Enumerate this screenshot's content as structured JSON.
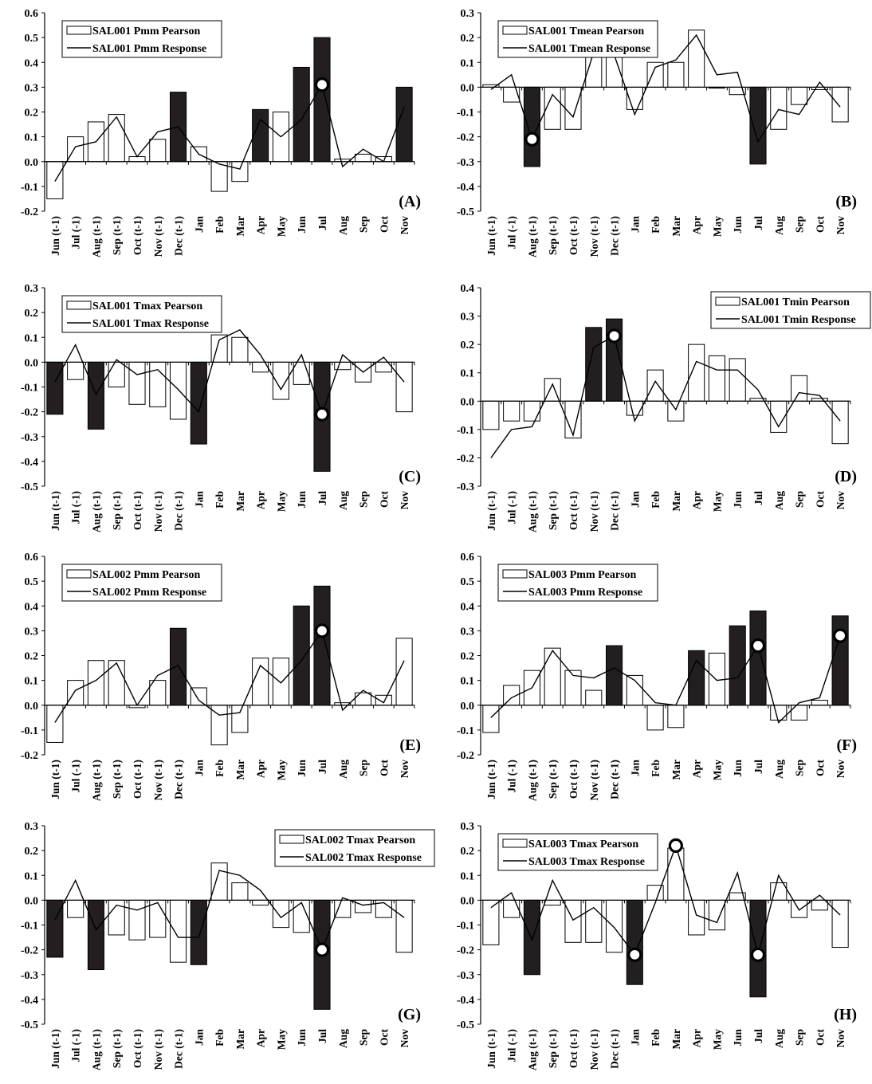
{
  "chart_data": [
    {
      "type": "bar",
      "panel_label": "(A)",
      "categories": [
        "Jun (t-1)",
        "Jul (-1)",
        "Aug (t-1)",
        "Sep (t-1)",
        "Oct (t-1)",
        "Nov (t-1)",
        "Dec (t-1)",
        "Jan",
        "Feb",
        "Mar",
        "Apr",
        "May",
        "Jun",
        "Jul",
        "Aug",
        "Sep",
        "Oct",
        "Nov"
      ],
      "ylim": [
        -0.2,
        0.6
      ],
      "yticks": [
        "-0.2",
        "-0.1",
        "0.0",
        "0.1",
        "0.2",
        "0.3",
        "0.4",
        "0.5",
        "0.6"
      ],
      "legend_position": "top-left",
      "series": [
        {
          "name": "SAL001 Pmm Pearson",
          "kind": "bar",
          "values": [
            -0.15,
            0.1,
            0.16,
            0.19,
            0.02,
            0.09,
            0.28,
            0.06,
            -0.12,
            -0.08,
            0.21,
            0.2,
            0.38,
            0.5,
            0.01,
            0.03,
            0.02,
            0.3
          ],
          "highlighted": [
            false,
            false,
            false,
            false,
            false,
            false,
            true,
            false,
            false,
            false,
            true,
            false,
            true,
            true,
            false,
            false,
            false,
            true
          ]
        },
        {
          "name": "SAL001 Pmm Response",
          "kind": "line",
          "values": [
            -0.08,
            0.06,
            0.08,
            0.18,
            0.02,
            0.12,
            0.14,
            0.03,
            -0.01,
            -0.03,
            0.17,
            0.1,
            0.17,
            0.31,
            -0.02,
            0.05,
            0.0,
            0.22
          ],
          "markers": [
            13
          ]
        }
      ]
    },
    {
      "type": "bar",
      "panel_label": "(B)",
      "categories": [
        "Jun (t-1)",
        "Jul (-1)",
        "Aug (t-1)",
        "Sep (t-1)",
        "Oct (t-1)",
        "Nov (t-1)",
        "Dec (t-1)",
        "Jan",
        "Feb",
        "Mar",
        "Apr",
        "May",
        "Jun",
        "Jul",
        "Aug",
        "Sep",
        "Oct",
        "Nov"
      ],
      "ylim": [
        -0.5,
        0.3
      ],
      "yticks": [
        "-0.5",
        "-0.4",
        "-0.3",
        "-0.2",
        "-0.1",
        "0.0",
        "0.1",
        "0.2",
        "0.3"
      ],
      "legend_position": "top-left",
      "series": [
        {
          "name": "SAL001 Tmean Pearson",
          "kind": "bar",
          "values": [
            0.01,
            -0.06,
            -0.32,
            -0.17,
            -0.17,
            0.12,
            0.12,
            -0.09,
            0.1,
            0.1,
            0.23,
            0.0,
            -0.03,
            -0.31,
            -0.17,
            -0.07,
            -0.01,
            -0.14
          ],
          "highlighted": [
            false,
            false,
            true,
            false,
            false,
            false,
            false,
            false,
            false,
            false,
            false,
            false,
            false,
            true,
            false,
            false,
            false,
            false
          ]
        },
        {
          "name": "SAL001 Tmean Response",
          "kind": "line",
          "values": [
            -0.01,
            0.05,
            -0.21,
            -0.03,
            -0.12,
            0.14,
            0.13,
            -0.11,
            0.08,
            0.11,
            0.21,
            0.05,
            0.06,
            -0.22,
            -0.09,
            -0.11,
            0.02,
            -0.08
          ],
          "markers": [
            2
          ]
        }
      ]
    },
    {
      "type": "bar",
      "panel_label": "(C)",
      "categories": [
        "Jun (t-1)",
        "Jul (-1)",
        "Aug (t-1)",
        "Sep (t-1)",
        "Oct (t-1)",
        "Nov (t-1)",
        "Dec (t-1)",
        "Jan",
        "Feb",
        "Mar",
        "Apr",
        "May",
        "Jun",
        "Jul",
        "Aug",
        "Sep",
        "Oct",
        "Nov"
      ],
      "ylim": [
        -0.5,
        0.3
      ],
      "yticks": [
        "-0.5",
        "-0.4",
        "-0.3",
        "-0.2",
        "-0.1",
        "0.0",
        "0.1",
        "0.2",
        "0.3"
      ],
      "legend_position": "top-left",
      "series": [
        {
          "name": "SAL001 Tmax Pearson",
          "kind": "bar",
          "values": [
            -0.21,
            -0.07,
            -0.27,
            -0.1,
            -0.17,
            -0.18,
            -0.23,
            -0.33,
            0.11,
            0.1,
            -0.04,
            -0.15,
            -0.09,
            -0.44,
            -0.03,
            -0.08,
            -0.04,
            -0.2
          ],
          "highlighted": [
            true,
            false,
            true,
            false,
            false,
            false,
            false,
            true,
            false,
            false,
            false,
            false,
            false,
            true,
            false,
            false,
            false,
            false
          ]
        },
        {
          "name": "SAL001 Tmax Response",
          "kind": "line",
          "values": [
            -0.08,
            0.07,
            -0.13,
            0.01,
            -0.05,
            -0.03,
            -0.11,
            -0.2,
            0.09,
            0.13,
            0.03,
            -0.11,
            0.03,
            -0.21,
            0.03,
            -0.04,
            0.02,
            -0.08
          ],
          "markers": [
            13
          ]
        }
      ]
    },
    {
      "type": "bar",
      "panel_label": "(D)",
      "categories": [
        "Jun (t-1)",
        "Jul (-1)",
        "Aug (t-1)",
        "Sep (t-1)",
        "Oct (t-1)",
        "Nov (t-1)",
        "Dec (t-1)",
        "Jan",
        "Feb",
        "Mar",
        "Apr",
        "May",
        "Jun",
        "Jul",
        "Aug",
        "Sep",
        "Oct",
        "Nov"
      ],
      "ylim": [
        -0.3,
        0.4
      ],
      "yticks": [
        "-0.3",
        "-0.2",
        "-0.1",
        "0.0",
        "0.1",
        "0.2",
        "0.3",
        "0.4"
      ],
      "legend_position": "top-right",
      "series": [
        {
          "name": "SAL001 Tmin Pearson",
          "kind": "bar",
          "values": [
            -0.1,
            -0.07,
            -0.07,
            0.08,
            -0.13,
            0.26,
            0.29,
            -0.05,
            0.11,
            -0.07,
            0.2,
            0.16,
            0.15,
            0.01,
            -0.11,
            0.09,
            0.01,
            -0.15
          ],
          "highlighted": [
            false,
            false,
            false,
            false,
            false,
            true,
            true,
            false,
            false,
            false,
            false,
            false,
            false,
            false,
            false,
            false,
            false,
            false
          ]
        },
        {
          "name": "SAL001 Tmin Response",
          "kind": "line",
          "values": [
            -0.2,
            -0.1,
            -0.09,
            0.06,
            -0.12,
            0.19,
            0.23,
            -0.07,
            0.07,
            -0.03,
            0.14,
            0.11,
            0.11,
            0.04,
            -0.09,
            0.03,
            0.02,
            -0.07
          ],
          "markers": [
            6
          ]
        }
      ]
    },
    {
      "type": "bar",
      "panel_label": "(E)",
      "categories": [
        "Jun (t-1)",
        "Jul (-1)",
        "Aug (t-1)",
        "Sep (t-1)",
        "Oct (t-1)",
        "Nov (t-1)",
        "Dec (t-1)",
        "Jan",
        "Feb",
        "Mar",
        "Apr",
        "May",
        "Jun",
        "Jul",
        "Aug",
        "Sep",
        "Oct",
        "Nov"
      ],
      "ylim": [
        -0.2,
        0.6
      ],
      "yticks": [
        "-0.2",
        "-0.1",
        "0.0",
        "0.1",
        "0.2",
        "0.3",
        "0.4",
        "0.5",
        "0.6"
      ],
      "legend_position": "top-left",
      "series": [
        {
          "name": "SAL002 Pmm Pearson",
          "kind": "bar",
          "values": [
            -0.15,
            0.1,
            0.18,
            0.18,
            -0.01,
            0.1,
            0.31,
            0.07,
            -0.16,
            -0.11,
            0.19,
            0.19,
            0.4,
            0.48,
            0.01,
            0.05,
            0.04,
            0.27
          ],
          "highlighted": [
            false,
            false,
            false,
            false,
            false,
            false,
            true,
            false,
            false,
            false,
            false,
            false,
            true,
            true,
            false,
            false,
            false,
            false
          ]
        },
        {
          "name": "SAL002 Pmm Response",
          "kind": "line",
          "values": [
            -0.07,
            0.06,
            0.1,
            0.17,
            0.0,
            0.12,
            0.16,
            0.02,
            -0.04,
            -0.03,
            0.16,
            0.09,
            0.18,
            0.3,
            -0.02,
            0.06,
            0.01,
            0.18
          ],
          "markers": [
            13
          ]
        }
      ]
    },
    {
      "type": "bar",
      "panel_label": "(F)",
      "categories": [
        "Jun (t-1)",
        "Jul (-1)",
        "Aug (t-1)",
        "Sep (t-1)",
        "Oct (t-1)",
        "Nov (t-1)",
        "Dec (t-1)",
        "Jan",
        "Feb",
        "Mar",
        "Apr",
        "May",
        "Jun",
        "Jul",
        "Aug",
        "Sep",
        "Oct",
        "Nov"
      ],
      "ylim": [
        -0.2,
        0.6
      ],
      "yticks": [
        "-0.2",
        "-0.1",
        "0.0",
        "0.1",
        "0.2",
        "0.3",
        "0.4",
        "0.5",
        "0.6"
      ],
      "legend_position": "top-left",
      "series": [
        {
          "name": "SAL003 Pmm Pearson",
          "kind": "bar",
          "values": [
            -0.11,
            0.08,
            0.14,
            0.23,
            0.14,
            0.06,
            0.24,
            0.12,
            -0.1,
            -0.09,
            0.22,
            0.21,
            0.32,
            0.38,
            -0.06,
            -0.06,
            0.02,
            0.36
          ],
          "highlighted": [
            false,
            false,
            false,
            false,
            false,
            false,
            true,
            false,
            false,
            false,
            true,
            false,
            true,
            true,
            false,
            false,
            false,
            true
          ]
        },
        {
          "name": "SAL003 Pmm Response",
          "kind": "line",
          "values": [
            -0.05,
            0.03,
            0.07,
            0.22,
            0.12,
            0.11,
            0.15,
            0.1,
            0.01,
            0.0,
            0.18,
            0.1,
            0.11,
            0.24,
            -0.07,
            0.01,
            0.03,
            0.28
          ],
          "markers": [
            13,
            17
          ]
        }
      ]
    },
    {
      "type": "bar",
      "panel_label": "(G)",
      "categories": [
        "Jun (t-1)",
        "Jul (-1)",
        "Aug (t-1)",
        "Sep (t-1)",
        "Oct (t-1)",
        "Nov (t-1)",
        "Dec (t-1)",
        "Jan",
        "Feb",
        "Mar",
        "Apr",
        "May",
        "Jun",
        "Jul",
        "Aug",
        "Sep",
        "Oct",
        "Nov"
      ],
      "ylim": [
        -0.5,
        0.3
      ],
      "yticks": [
        "-0.5",
        "-0.4",
        "-0.3",
        "-0.2",
        "-0.1",
        "0.0",
        "0.1",
        "0.2",
        "0.3"
      ],
      "legend_position": "top-right",
      "series": [
        {
          "name": "SAL002 Tmax Pearson",
          "kind": "bar",
          "values": [
            -0.23,
            -0.07,
            -0.28,
            -0.14,
            -0.16,
            -0.15,
            -0.25,
            -0.26,
            0.15,
            0.07,
            -0.02,
            -0.11,
            -0.13,
            -0.44,
            -0.07,
            -0.05,
            -0.07,
            -0.21
          ],
          "highlighted": [
            true,
            false,
            true,
            false,
            false,
            false,
            false,
            true,
            false,
            false,
            false,
            false,
            false,
            true,
            false,
            false,
            false,
            false
          ]
        },
        {
          "name": "SAL002 Tmax Response",
          "kind": "line",
          "values": [
            -0.08,
            0.08,
            -0.12,
            -0.02,
            -0.04,
            -0.01,
            -0.15,
            -0.15,
            0.12,
            0.1,
            0.04,
            -0.07,
            -0.01,
            -0.2,
            0.01,
            -0.02,
            -0.01,
            -0.07
          ],
          "markers": [
            13
          ]
        }
      ]
    },
    {
      "type": "bar",
      "panel_label": "(H)",
      "categories": [
        "Jun (t-1)",
        "Jul (-1)",
        "Aug (t-1)",
        "Sep (t-1)",
        "Oct (t-1)",
        "Nov (t-1)",
        "Dec (t-1)",
        "Jan",
        "Feb",
        "Mar",
        "Apr",
        "May",
        "Jun",
        "Jul",
        "Aug",
        "Sep",
        "Oct",
        "Nov"
      ],
      "ylim": [
        -0.5,
        0.3
      ],
      "yticks": [
        "-0.5",
        "-0.4",
        "-0.3",
        "-0.2",
        "-0.1",
        "0.0",
        "0.1",
        "0.2",
        "0.3"
      ],
      "legend_position": "top-left",
      "series": [
        {
          "name": "SAL003 Tmax Pearson",
          "kind": "bar",
          "values": [
            -0.18,
            -0.07,
            -0.3,
            -0.02,
            -0.17,
            -0.17,
            -0.21,
            -0.34,
            0.06,
            0.21,
            -0.14,
            -0.12,
            0.03,
            -0.39,
            0.07,
            -0.07,
            -0.04,
            -0.19
          ],
          "highlighted": [
            false,
            false,
            true,
            false,
            false,
            false,
            false,
            true,
            false,
            false,
            false,
            false,
            false,
            true,
            false,
            false,
            false,
            false
          ]
        },
        {
          "name": "SAL003 Tmax Response",
          "kind": "line",
          "values": [
            -0.03,
            0.03,
            -0.16,
            0.08,
            -0.08,
            -0.03,
            -0.11,
            -0.22,
            -0.01,
            0.22,
            -0.06,
            -0.09,
            0.11,
            -0.22,
            0.1,
            -0.04,
            0.02,
            -0.06
          ],
          "markers": [
            7,
            9,
            13
          ]
        }
      ]
    }
  ]
}
